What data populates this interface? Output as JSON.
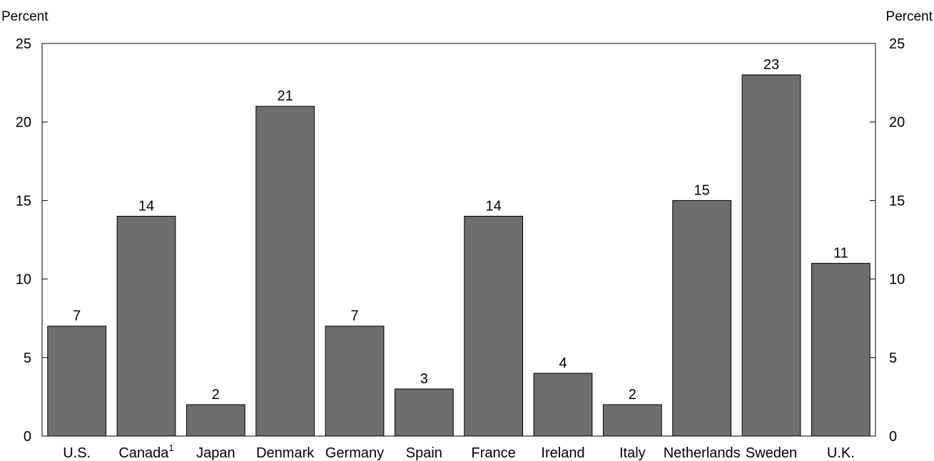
{
  "chart_data": {
    "type": "bar",
    "title": "",
    "ylabel_left": "Percent",
    "ylabel_right": "Percent",
    "ylim": [
      0,
      25
    ],
    "yticks": [
      0,
      5,
      10,
      15,
      20,
      25
    ],
    "grid": false,
    "legend": "none",
    "bar_color": "#6d6d6d",
    "categories": [
      {
        "label": "U.S.",
        "sup": ""
      },
      {
        "label": "Canada",
        "sup": "1"
      },
      {
        "label": "Japan",
        "sup": ""
      },
      {
        "label": "Denmark",
        "sup": ""
      },
      {
        "label": "Germany",
        "sup": ""
      },
      {
        "label": "Spain",
        "sup": ""
      },
      {
        "label": "France",
        "sup": ""
      },
      {
        "label": "Ireland",
        "sup": ""
      },
      {
        "label": "Italy",
        "sup": ""
      },
      {
        "label": "Netherlands",
        "sup": ""
      },
      {
        "label": "Sweden",
        "sup": ""
      },
      {
        "label": "U.K.",
        "sup": ""
      }
    ],
    "values": [
      7,
      14,
      2,
      21,
      7,
      3,
      14,
      4,
      2,
      15,
      23,
      11
    ]
  }
}
